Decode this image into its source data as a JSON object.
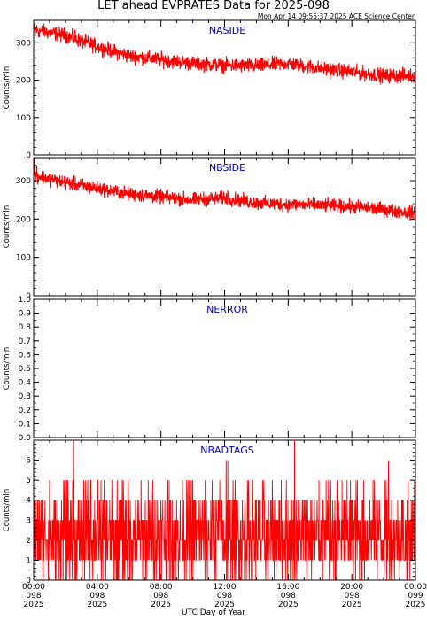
{
  "title": "LET ahead EVPRATES Data for 2025-098",
  "timestamp": "Mon Apr 14 09:55:37 2025 ACE Science Center",
  "xaxis_title": "UTC Day of Year",
  "colors": {
    "series": "#ff0000",
    "panel_label": "#0000cc",
    "axis": "#000000"
  },
  "chart_data": [
    {
      "type": "line",
      "panel_label": "NASIDE",
      "ylabel": "Counts/min",
      "ylim": [
        0,
        360
      ],
      "yticks": [
        0,
        100,
        200,
        300
      ],
      "xlim": [
        0,
        24
      ],
      "trend": [
        [
          0,
          335
        ],
        [
          2,
          320
        ],
        [
          4,
          290
        ],
        [
          6,
          265
        ],
        [
          8,
          255
        ],
        [
          10,
          245
        ],
        [
          12,
          240
        ],
        [
          14,
          238
        ],
        [
          16,
          245
        ],
        [
          18,
          232
        ],
        [
          20,
          222
        ],
        [
          22,
          212
        ],
        [
          24,
          212
        ]
      ],
      "noise": 16,
      "spikes": [
        [
          0.05,
          345
        ],
        [
          0.3,
          315
        ],
        [
          2.6,
          335
        ]
      ]
    },
    {
      "type": "line",
      "panel_label": "NBSIDE",
      "ylabel": "Counts/min",
      "ylim": [
        0,
        360
      ],
      "yticks": [
        0,
        100,
        200,
        300
      ],
      "xlim": [
        0,
        24
      ],
      "trend": [
        [
          0,
          315
        ],
        [
          2,
          295
        ],
        [
          4,
          280
        ],
        [
          6,
          265
        ],
        [
          8,
          258
        ],
        [
          10,
          250
        ],
        [
          12,
          255
        ],
        [
          14,
          242
        ],
        [
          16,
          238
        ],
        [
          18,
          236
        ],
        [
          20,
          232
        ],
        [
          22,
          225
        ],
        [
          24,
          215
        ]
      ],
      "noise": 15,
      "spikes": [
        [
          0.05,
          360
        ],
        [
          0.2,
          340
        ],
        [
          1.5,
          310
        ],
        [
          12.2,
          275
        ]
      ]
    },
    {
      "type": "line",
      "panel_label": "NERROR",
      "ylabel": "Counts/min",
      "ylim": [
        0,
        1.0
      ],
      "yticks": [
        0.0,
        0.1,
        0.2,
        0.3,
        0.4,
        0.5,
        0.6,
        0.7,
        0.8,
        0.9,
        1.0
      ],
      "xlim": [
        0,
        24
      ],
      "trend": [
        [
          0,
          0
        ],
        [
          24,
          0
        ]
      ],
      "noise": 0,
      "spikes": []
    },
    {
      "type": "line",
      "panel_label": "NBADTAGS",
      "ylabel": "Counts/min",
      "ylim": [
        0,
        7
      ],
      "yticks": [
        0,
        1,
        2,
        3,
        4,
        5,
        6
      ],
      "xlim": [
        0,
        24
      ],
      "discrete": true,
      "distribution": [
        [
          0,
          0.08
        ],
        [
          1,
          0.22
        ],
        [
          2,
          0.3
        ],
        [
          3,
          0.22
        ],
        [
          4,
          0.13
        ],
        [
          5,
          0.05
        ]
      ],
      "spikes": [
        [
          2.5,
          7
        ],
        [
          3.6,
          5
        ],
        [
          10.0,
          5
        ],
        [
          12.1,
          6
        ],
        [
          12.2,
          6
        ],
        [
          16.4,
          7
        ],
        [
          22.3,
          6
        ]
      ]
    }
  ],
  "xticks": [
    {
      "value": 0,
      "time": "00:00",
      "doy": "098",
      "year": "2025"
    },
    {
      "value": 4,
      "time": "04:00",
      "doy": "098",
      "year": "2025"
    },
    {
      "value": 8,
      "time": "08:00",
      "doy": "098",
      "year": "2025"
    },
    {
      "value": 12,
      "time": "12:00",
      "doy": "098",
      "year": "2025"
    },
    {
      "value": 16,
      "time": "16:00",
      "doy": "098",
      "year": "2025"
    },
    {
      "value": 20,
      "time": "20:00",
      "doy": "098",
      "year": "2025"
    },
    {
      "value": 24,
      "time": "00:00",
      "doy": "099",
      "year": "2025"
    }
  ]
}
